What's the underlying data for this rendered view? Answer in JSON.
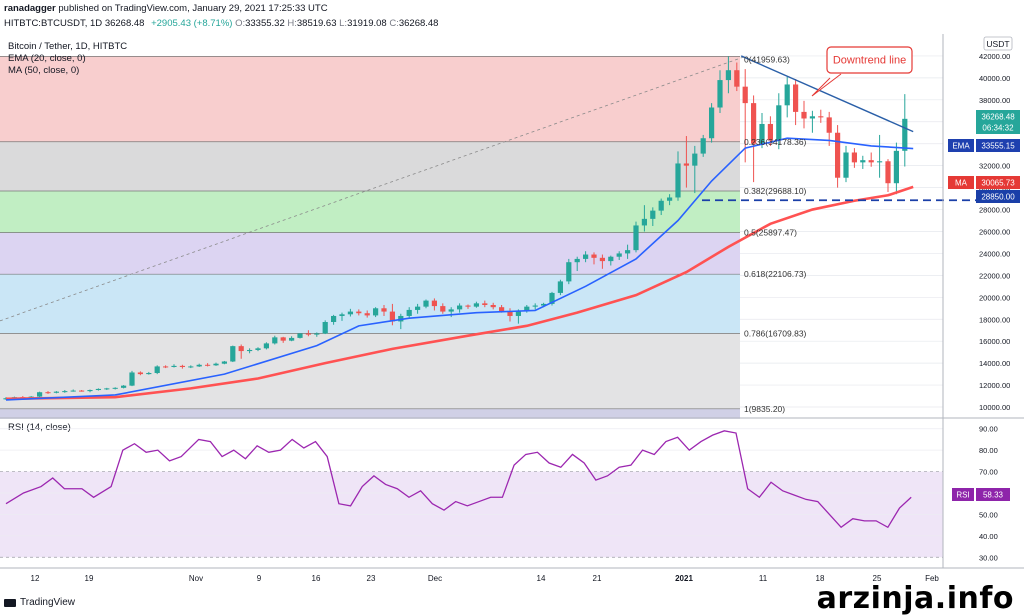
{
  "header": {
    "user": "ranadagger",
    "published_text": "published on TradingView.com, January 29, 2021 17:25:33 UTC",
    "symbol_line": "HITBTC:BTCUSDT, 1D",
    "last": "36268.48",
    "change": "+2905.43 (+8.71%)",
    "open_label": "O:",
    "open": "33355.32",
    "high_label": "H:",
    "high": "38519.63",
    "low_label": "L:",
    "low": "31919.08",
    "close_label": "C:",
    "close": "36268.48"
  },
  "legend": {
    "title": "Bitcoin / Tether, 1D, HITBTC",
    "ema": "EMA (20, close, 0)",
    "ma": "MA (50, close, 0)",
    "rsi": "RSI (14, close)"
  },
  "badges": {
    "currency": "USDT",
    "price": "36268.48",
    "countdown": "06:34:32",
    "ema_label": "EMA",
    "ema_value": "33555.15",
    "ma_label": "MA",
    "ma_value": "30065.73",
    "support_value": "28850.00",
    "rsi_label": "RSI",
    "rsi_value": "58.33"
  },
  "annotation": {
    "text": "Downtrend line"
  },
  "footer": {
    "brand": "TradingView",
    "watermark": "arzinja.info"
  },
  "colors": {
    "up": "#26a69a",
    "down": "#ef5350",
    "ema": "#2962ff",
    "ma": "#ff5252",
    "rsi": "#9c27b0",
    "trend": "#2a5fa8"
  },
  "chart_data": [
    {
      "type": "candlestick",
      "title": "Bitcoin / Tether, 1D, HITBTC",
      "ylim": [
        9000,
        44000
      ],
      "y_ticks": [
        10000,
        12000,
        14000,
        16000,
        18000,
        20000,
        22000,
        24000,
        26000,
        28000,
        30000,
        32000,
        34000,
        36000,
        38000,
        40000,
        42000
      ],
      "x_ticks": [
        "12",
        "19",
        "Nov",
        "9",
        "16",
        "23",
        "Dec",
        "14",
        "21",
        "2021",
        "11",
        "18",
        "25",
        "Feb"
      ],
      "candles": [
        [
          10700,
          10900,
          10650,
          10800
        ],
        [
          10800,
          10950,
          10750,
          10900
        ],
        [
          10900,
          11000,
          10800,
          10850
        ],
        [
          10850,
          11000,
          10800,
          10950
        ],
        [
          10950,
          11400,
          10900,
          11350
        ],
        [
          11350,
          11450,
          11200,
          11300
        ],
        [
          11300,
          11450,
          11250,
          11400
        ],
        [
          11400,
          11550,
          11300,
          11450
        ],
        [
          11450,
          11600,
          11400,
          11500
        ],
        [
          11500,
          11550,
          11400,
          11450
        ],
        [
          11450,
          11600,
          11350,
          11550
        ],
        [
          11550,
          11700,
          11500,
          11650
        ],
        [
          11650,
          11750,
          11550,
          11700
        ],
        [
          11700,
          11800,
          11600,
          11750
        ],
        [
          11750,
          12000,
          11700,
          11950
        ],
        [
          11950,
          13300,
          11900,
          13150
        ],
        [
          13150,
          13250,
          12900,
          13000
        ],
        [
          13000,
          13200,
          12950,
          13100
        ],
        [
          13100,
          13800,
          13000,
          13700
        ],
        [
          13700,
          13800,
          13550,
          13650
        ],
        [
          13650,
          13900,
          13600,
          13750
        ],
        [
          13750,
          13850,
          13500,
          13650
        ],
        [
          13650,
          13800,
          13550,
          13700
        ],
        [
          13700,
          13950,
          13650,
          13850
        ],
        [
          13850,
          14000,
          13700,
          13800
        ],
        [
          13800,
          14050,
          13750,
          13950
        ],
        [
          13950,
          14200,
          13900,
          14150
        ],
        [
          14150,
          15600,
          14100,
          15550
        ],
        [
          15550,
          15700,
          14400,
          15100
        ],
        [
          15100,
          15350,
          14900,
          15200
        ],
        [
          15200,
          15450,
          15100,
          15350
        ],
        [
          15350,
          15900,
          15250,
          15800
        ],
        [
          15800,
          16500,
          15700,
          16350
        ],
        [
          16350,
          16400,
          15850,
          16050
        ],
        [
          16050,
          16450,
          16000,
          16300
        ],
        [
          16300,
          16750,
          16250,
          16700
        ],
        [
          16700,
          17000,
          16450,
          16600
        ],
        [
          16600,
          16800,
          16400,
          16700
        ],
        [
          16700,
          17900,
          16650,
          17750
        ],
        [
          17750,
          18400,
          17500,
          18300
        ],
        [
          18300,
          18600,
          17850,
          18450
        ],
        [
          18450,
          18950,
          18250,
          18700
        ],
        [
          18700,
          18900,
          18350,
          18550
        ],
        [
          18550,
          18800,
          18150,
          18350
        ],
        [
          18350,
          19100,
          18200,
          19000
        ],
        [
          19000,
          19300,
          18300,
          18700
        ],
        [
          18700,
          19400,
          17450,
          17800
        ],
        [
          17800,
          18500,
          17100,
          18300
        ],
        [
          18300,
          19100,
          18100,
          18850
        ],
        [
          18850,
          19400,
          18500,
          19150
        ],
        [
          19150,
          19800,
          19000,
          19700
        ],
        [
          19700,
          19900,
          18800,
          19200
        ],
        [
          19200,
          19450,
          18500,
          18700
        ],
        [
          18700,
          19100,
          18200,
          18900
        ],
        [
          18900,
          19450,
          18600,
          19250
        ],
        [
          19250,
          19350,
          18950,
          19150
        ],
        [
          19150,
          19600,
          19050,
          19450
        ],
        [
          19450,
          19700,
          19100,
          19300
        ],
        [
          19300,
          19500,
          18900,
          19100
        ],
        [
          19100,
          19300,
          18600,
          18700
        ],
        [
          18700,
          19000,
          17800,
          18300
        ],
        [
          18300,
          18900,
          17600,
          18800
        ],
        [
          18800,
          19300,
          18600,
          19150
        ],
        [
          19150,
          19450,
          18900,
          19250
        ],
        [
          19250,
          19500,
          19100,
          19400
        ],
        [
          19400,
          20500,
          19250,
          20400
        ],
        [
          20400,
          21600,
          20200,
          21450
        ],
        [
          21450,
          23500,
          21200,
          23200
        ],
        [
          23200,
          23700,
          22400,
          23500
        ],
        [
          23500,
          24200,
          23200,
          23900
        ],
        [
          23900,
          24100,
          23000,
          23600
        ],
        [
          23600,
          23900,
          22600,
          23300
        ],
        [
          23300,
          23800,
          22900,
          23700
        ],
        [
          23700,
          24200,
          23400,
          24000
        ],
        [
          24000,
          24800,
          23500,
          24300
        ],
        [
          24300,
          26900,
          24100,
          26550
        ],
        [
          26550,
          28400,
          26000,
          27150
        ],
        [
          27150,
          28200,
          26500,
          27900
        ],
        [
          27900,
          29000,
          27500,
          28800
        ],
        [
          28800,
          29400,
          28400,
          29100
        ],
        [
          29100,
          33300,
          28800,
          32200
        ],
        [
          32200,
          34700,
          30000,
          32000
        ],
        [
          32000,
          33800,
          29500,
          33100
        ],
        [
          33100,
          34800,
          32800,
          34500
        ],
        [
          34500,
          37700,
          34100,
          37300
        ],
        [
          37300,
          40700,
          36800,
          39800
        ],
        [
          39800,
          41950,
          38600,
          40700
        ],
        [
          40700,
          41400,
          38800,
          39200
        ],
        [
          39200,
          40800,
          32300,
          37700
        ],
        [
          37700,
          38400,
          30500,
          34000
        ],
        [
          34000,
          36800,
          33600,
          35800
        ],
        [
          35800,
          36500,
          33800,
          34300
        ],
        [
          34300,
          38600,
          33500,
          37500
        ],
        [
          37500,
          40100,
          36400,
          39400
        ],
        [
          39400,
          39900,
          35700,
          36900
        ],
        [
          36900,
          37900,
          35400,
          36300
        ],
        [
          36300,
          37000,
          35000,
          36500
        ],
        [
          36500,
          37100,
          35900,
          36400
        ],
        [
          36400,
          36900,
          33800,
          35000
        ],
        [
          35000,
          35700,
          30000,
          30900
        ],
        [
          30900,
          33800,
          30500,
          33200
        ],
        [
          33200,
          33600,
          31800,
          32300
        ],
        [
          32300,
          32900,
          31700,
          32500
        ],
        [
          32500,
          33200,
          31900,
          32300
        ],
        [
          32300,
          34800,
          30900,
          32400
        ],
        [
          32400,
          32600,
          29600,
          30400
        ],
        [
          30400,
          34100,
          29400,
          33350
        ],
        [
          33355,
          38520,
          31920,
          36268
        ]
      ],
      "ema_20": [
        [
          0,
          10650
        ],
        [
          13,
          11100
        ],
        [
          26,
          13000
        ],
        [
          37,
          15600
        ],
        [
          42,
          17400
        ],
        [
          48,
          18100
        ],
        [
          56,
          18600
        ],
        [
          63,
          18800
        ],
        [
          69,
          21000
        ],
        [
          75,
          23500
        ],
        [
          80,
          27000
        ],
        [
          84,
          30600
        ],
        [
          88,
          33600
        ],
        [
          93,
          34500
        ],
        [
          98,
          34300
        ],
        [
          103,
          33800
        ],
        [
          108,
          33555
        ]
      ],
      "ma_50": [
        [
          0,
          10750
        ],
        [
          13,
          10900
        ],
        [
          22,
          11700
        ],
        [
          30,
          12600
        ],
        [
          38,
          14000
        ],
        [
          46,
          15300
        ],
        [
          55,
          16500
        ],
        [
          62,
          17400
        ],
        [
          68,
          18600
        ],
        [
          75,
          20200
        ],
        [
          81,
          22300
        ],
        [
          86,
          24600
        ],
        [
          91,
          26700
        ],
        [
          96,
          28000
        ],
        [
          101,
          28800
        ],
        [
          105,
          29300
        ],
        [
          108,
          30066
        ]
      ],
      "fib_levels": [
        {
          "ratio": "0",
          "value": 41959.63,
          "label": "0(41959.63)",
          "fill": "#f7c5c5"
        },
        {
          "ratio": "0.236",
          "value": 34178.36,
          "label": "0.236(34178.36)",
          "fill": "#d3d3d5"
        },
        {
          "ratio": "0.382",
          "value": 29688.1,
          "label": "0.382(29688.10)",
          "fill": "#b6ebb8"
        },
        {
          "ratio": "0.5",
          "value": 25897.47,
          "label": "0.5(25897.47)",
          "fill": "#d6ccf0"
        },
        {
          "ratio": "0.618",
          "value": 22106.73,
          "label": "0.618(22106.73)",
          "fill": "#c1e2f4"
        },
        {
          "ratio": "0.786",
          "value": 16709.83,
          "label": "0.786(16709.83)",
          "fill": "#dededf"
        },
        {
          "ratio": "1",
          "value": 9835.2,
          "label": "1(9835.20)",
          "fill": "#c8c8e2"
        }
      ],
      "support_line": 28850,
      "downtrend_line": [
        [
          88,
          42000
        ],
        [
          108,
          35100
        ]
      ]
    },
    {
      "type": "line",
      "title": "RSI (14, close)",
      "ylim": [
        25,
        95
      ],
      "y_ticks": [
        30,
        40,
        50,
        60,
        70,
        80,
        90
      ],
      "band": [
        30,
        70
      ],
      "values": [
        [
          0,
          55
        ],
        [
          3,
          60
        ],
        [
          6,
          63
        ],
        [
          8,
          67
        ],
        [
          10,
          62
        ],
        [
          13,
          62
        ],
        [
          15,
          58
        ],
        [
          18,
          63
        ],
        [
          20,
          80
        ],
        [
          22,
          83
        ],
        [
          24,
          79
        ],
        [
          26,
          80
        ],
        [
          28,
          75
        ],
        [
          30,
          77
        ],
        [
          33,
          85
        ],
        [
          35,
          84
        ],
        [
          37,
          77
        ],
        [
          39,
          80
        ],
        [
          41,
          76
        ],
        [
          43,
          82
        ],
        [
          45,
          79
        ],
        [
          47,
          80
        ],
        [
          49,
          85
        ],
        [
          51,
          81
        ],
        [
          53,
          84
        ],
        [
          55,
          77
        ],
        [
          57,
          55
        ],
        [
          59,
          54
        ],
        [
          61,
          63
        ],
        [
          63,
          68
        ],
        [
          65,
          64
        ],
        [
          67,
          62
        ],
        [
          69,
          58
        ],
        [
          71,
          61
        ],
        [
          73,
          55
        ],
        [
          75,
          52
        ],
        [
          77,
          56
        ],
        [
          79,
          54
        ],
        [
          81,
          56
        ],
        [
          83,
          58
        ],
        [
          85,
          58
        ],
        [
          87,
          73
        ],
        [
          89,
          78
        ],
        [
          91,
          79
        ],
        [
          93,
          74
        ],
        [
          95,
          72
        ],
        [
          97,
          78
        ],
        [
          99,
          74
        ],
        [
          101,
          66
        ],
        [
          103,
          68
        ],
        [
          105,
          72
        ],
        [
          107,
          73
        ],
        [
          109,
          80
        ],
        [
          111,
          78
        ],
        [
          113,
          84
        ],
        [
          115,
          86
        ],
        [
          117,
          80
        ],
        [
          119,
          84
        ],
        [
          121,
          87
        ],
        [
          123,
          89
        ],
        [
          125,
          88
        ],
        [
          127,
          62
        ],
        [
          129,
          58
        ],
        [
          131,
          65
        ],
        [
          133,
          61
        ],
        [
          135,
          59
        ],
        [
          137,
          57
        ],
        [
          139,
          56
        ],
        [
          141,
          50
        ],
        [
          143,
          44
        ],
        [
          145,
          48
        ],
        [
          147,
          47
        ],
        [
          149,
          47
        ],
        [
          151,
          44
        ],
        [
          153,
          53
        ],
        [
          155,
          58
        ]
      ]
    }
  ]
}
